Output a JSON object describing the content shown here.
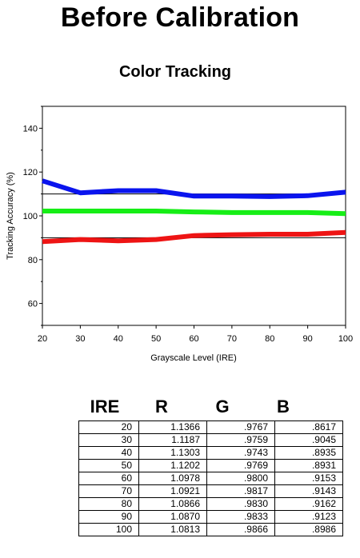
{
  "page": {
    "title": "Before Calibration"
  },
  "chart_data": {
    "type": "line",
    "title": "Color Tracking",
    "xlabel": "Grayscale Level (IRE)",
    "ylabel": "Tracking Accuracy (%)",
    "xlim": [
      20,
      100
    ],
    "ylim": [
      50,
      150
    ],
    "x_ticks": [
      20,
      30,
      40,
      50,
      60,
      70,
      80,
      90,
      100
    ],
    "y_ticks": [
      60,
      80,
      100,
      120,
      140
    ],
    "y_minor_ticks": [
      50,
      70,
      90,
      110,
      130,
      150
    ],
    "reference_lines": [
      110,
      90
    ],
    "grid": false,
    "x": [
      20,
      30,
      40,
      50,
      60,
      70,
      80,
      90,
      100
    ],
    "series": [
      {
        "color": "#0a14ee",
        "values": [
          116.0,
          110.5,
          111.5,
          111.5,
          109.0,
          109.0,
          108.8,
          109.2,
          110.8
        ]
      },
      {
        "color": "#16ee16",
        "values": [
          102.2,
          102.2,
          102.2,
          102.2,
          101.8,
          101.5,
          101.5,
          101.5,
          101.0
        ]
      },
      {
        "color": "#ee1414",
        "values": [
          88.2,
          89.2,
          88.6,
          89.2,
          91.0,
          91.4,
          91.6,
          91.6,
          92.4
        ]
      }
    ]
  },
  "table": {
    "headers": [
      "IRE",
      "R",
      "G",
      "B"
    ],
    "rows": [
      [
        "20",
        "1.1366",
        ".9767",
        ".8617"
      ],
      [
        "30",
        "1.1187",
        ".9759",
        ".9045"
      ],
      [
        "40",
        "1.1303",
        ".9743",
        ".8935"
      ],
      [
        "50",
        "1.1202",
        ".9769",
        ".8931"
      ],
      [
        "60",
        "1.0978",
        ".9800",
        ".9153"
      ],
      [
        "70",
        "1.0921",
        ".9817",
        ".9143"
      ],
      [
        "80",
        "1.0866",
        ".9830",
        ".9162"
      ],
      [
        "90",
        "1.0870",
        ".9833",
        ".9123"
      ],
      [
        "100",
        "1.0813",
        ".9866",
        ".8986"
      ]
    ]
  }
}
